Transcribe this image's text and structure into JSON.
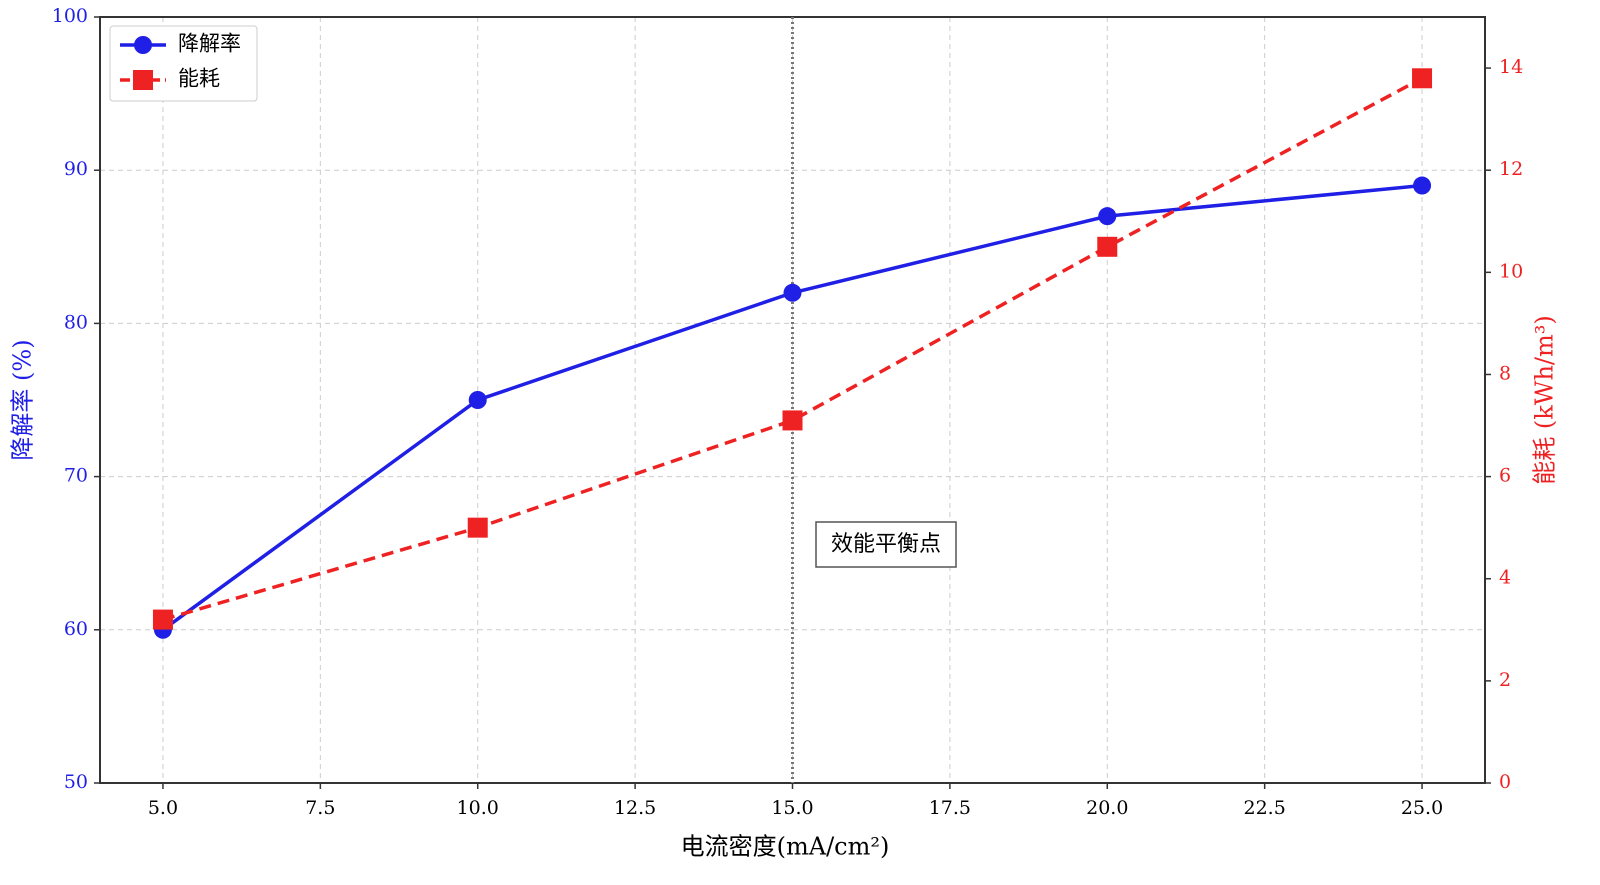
{
  "chart_data": {
    "type": "line",
    "x_label": "电流密度(mA/cm²)",
    "y_label": "降解率 (%)",
    "y2_label": "能耗 (kWh/m³)",
    "x": [
      5,
      10,
      15,
      20,
      25
    ],
    "series": [
      {
        "name": "降解率",
        "color": "#1f1fe6",
        "values": [
          60,
          75,
          82,
          87,
          89
        ],
        "marker": "circle"
      },
      {
        "name": "能耗",
        "color": "#ee2222",
        "values": [
          3.2,
          5.0,
          7.1,
          10.5,
          13.8
        ],
        "axis": "y2",
        "marker": "square",
        "dashed": true
      }
    ],
    "xlim": [
      4,
      26
    ],
    "xticks": [
      {
        "value": 5,
        "label": "5.0"
      },
      {
        "value": 7.5,
        "label": "7.5"
      },
      {
        "value": 10,
        "label": "10.0"
      },
      {
        "value": 12.5,
        "label": "12.5"
      },
      {
        "value": 15,
        "label": "15.0"
      },
      {
        "value": 17.5,
        "label": "17.5"
      },
      {
        "value": 20,
        "label": "20.0"
      },
      {
        "value": 22.5,
        "label": "22.5"
      },
      {
        "value": 25,
        "label": "25.0"
      }
    ],
    "ylim": [
      50,
      100
    ],
    "yticks": [
      50,
      60,
      70,
      80,
      90,
      100
    ],
    "y2lim": [
      0,
      15
    ],
    "y2ticks": [
      0,
      2,
      4,
      6,
      8,
      10,
      12,
      14
    ],
    "grid": true,
    "legend": "upper-left",
    "vline": {
      "x": 15,
      "label": "效能平衡点"
    }
  }
}
